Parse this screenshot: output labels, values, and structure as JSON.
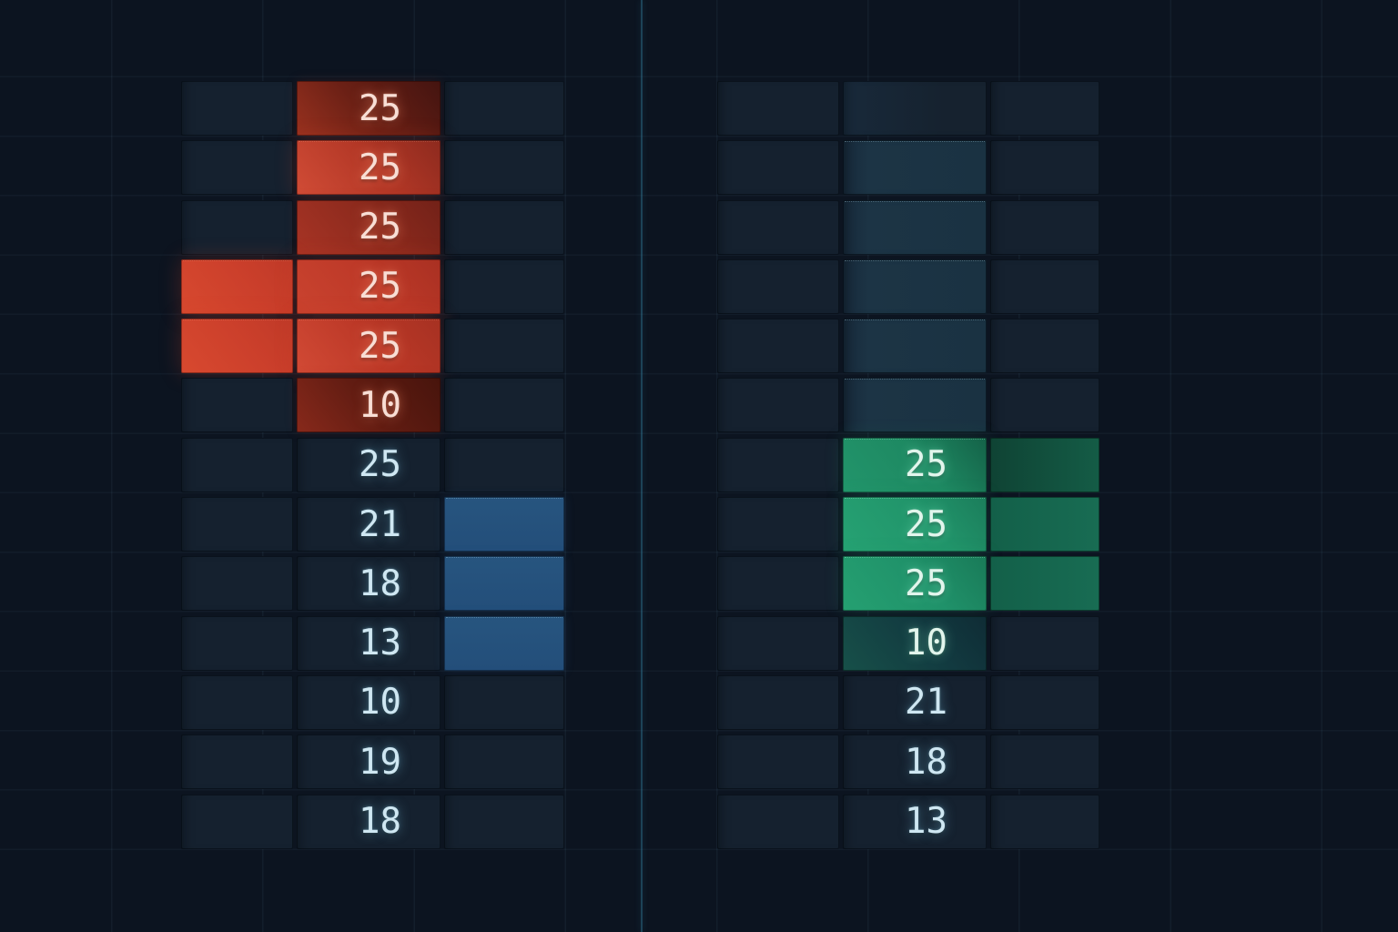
{
  "palette": {
    "background": "#0c1420",
    "divider": "rgba(52,130,165,0.42)",
    "grid_line": "rgba(115,170,200,0.06)",
    "cell_base": "#15212f",
    "red_bright": "#ca432f",
    "red_dark": "#6b2015",
    "orange_red_side": "#d8492f",
    "blue": "#25517f",
    "green_bright": "#21946a",
    "green_dim": "#176a52",
    "teal_fade": "#1a3242",
    "text_light": "#cfe7f2",
    "text_on_red": "#f8ded5",
    "text_on_green": "#e2f5ec"
  },
  "panels": [
    {
      "name": "left-board",
      "rows": [
        [
          {
            "t": "",
            "s": "plain"
          },
          {
            "t": "25",
            "s": "red1"
          },
          {
            "t": "",
            "s": "plain"
          }
        ],
        [
          {
            "t": "",
            "s": "plain"
          },
          {
            "t": "25",
            "s": "red2"
          },
          {
            "t": "",
            "s": "plain"
          }
        ],
        [
          {
            "t": "",
            "s": "plain"
          },
          {
            "t": "25",
            "s": "red3"
          },
          {
            "t": "",
            "s": "plain"
          }
        ],
        [
          {
            "t": "",
            "s": "redside"
          },
          {
            "t": "25",
            "s": "red4"
          },
          {
            "t": "",
            "s": "plain"
          }
        ],
        [
          {
            "t": "",
            "s": "redside"
          },
          {
            "t": "25",
            "s": "red5"
          },
          {
            "t": "",
            "s": "plain"
          }
        ],
        [
          {
            "t": "",
            "s": "plain"
          },
          {
            "t": "10",
            "s": "red6"
          },
          {
            "t": "",
            "s": "plain"
          }
        ],
        [
          {
            "t": "",
            "s": "plain"
          },
          {
            "t": "25",
            "s": "num"
          },
          {
            "t": "",
            "s": "plain"
          }
        ],
        [
          {
            "t": "",
            "s": "plain"
          },
          {
            "t": "21",
            "s": "num"
          },
          {
            "t": "",
            "s": "blue"
          }
        ],
        [
          {
            "t": "",
            "s": "plain"
          },
          {
            "t": "18",
            "s": "num"
          },
          {
            "t": "",
            "s": "blue"
          }
        ],
        [
          {
            "t": "",
            "s": "plain"
          },
          {
            "t": "13",
            "s": "num"
          },
          {
            "t": "",
            "s": "blue"
          }
        ],
        [
          {
            "t": "",
            "s": "plain"
          },
          {
            "t": "10",
            "s": "num"
          },
          {
            "t": "",
            "s": "plain"
          }
        ],
        [
          {
            "t": "",
            "s": "plain"
          },
          {
            "t": "19",
            "s": "num"
          },
          {
            "t": "",
            "s": "plain"
          }
        ],
        [
          {
            "t": "",
            "s": "plain"
          },
          {
            "t": "18",
            "s": "num"
          },
          {
            "t": "",
            "s": "plain"
          }
        ]
      ]
    },
    {
      "name": "right-board",
      "rows": [
        [
          {
            "t": "",
            "s": "plain"
          },
          {
            "t": "",
            "s": "fade0"
          },
          {
            "t": "",
            "s": "plain"
          }
        ],
        [
          {
            "t": "",
            "s": "plain"
          },
          {
            "t": "",
            "s": "fade"
          },
          {
            "t": "",
            "s": "plain"
          }
        ],
        [
          {
            "t": "",
            "s": "plain"
          },
          {
            "t": "",
            "s": "fade"
          },
          {
            "t": "",
            "s": "plain"
          }
        ],
        [
          {
            "t": "",
            "s": "plain"
          },
          {
            "t": "",
            "s": "fade"
          },
          {
            "t": "",
            "s": "plain"
          }
        ],
        [
          {
            "t": "",
            "s": "plain"
          },
          {
            "t": "",
            "s": "fade"
          },
          {
            "t": "",
            "s": "plain"
          }
        ],
        [
          {
            "t": "",
            "s": "plain"
          },
          {
            "t": "",
            "s": "fade"
          },
          {
            "t": "",
            "s": "plain"
          }
        ],
        [
          {
            "t": "",
            "s": "plain"
          },
          {
            "t": "25",
            "s": "green1"
          },
          {
            "t": "",
            "s": "gdim1"
          }
        ],
        [
          {
            "t": "",
            "s": "plain"
          },
          {
            "t": "25",
            "s": "green2"
          },
          {
            "t": "",
            "s": "gdim"
          }
        ],
        [
          {
            "t": "",
            "s": "plain"
          },
          {
            "t": "25",
            "s": "green3"
          },
          {
            "t": "",
            "s": "gdim"
          }
        ],
        [
          {
            "t": "",
            "s": "plain"
          },
          {
            "t": "10",
            "s": "green10"
          },
          {
            "t": "",
            "s": "plain"
          }
        ],
        [
          {
            "t": "",
            "s": "plain"
          },
          {
            "t": "21",
            "s": "num"
          },
          {
            "t": "",
            "s": "plain"
          }
        ],
        [
          {
            "t": "",
            "s": "plain"
          },
          {
            "t": "18",
            "s": "num"
          },
          {
            "t": "",
            "s": "plain"
          }
        ],
        [
          {
            "t": "",
            "s": "plain"
          },
          {
            "t": "13",
            "s": "num"
          },
          {
            "t": "",
            "s": "plain"
          }
        ]
      ]
    }
  ]
}
